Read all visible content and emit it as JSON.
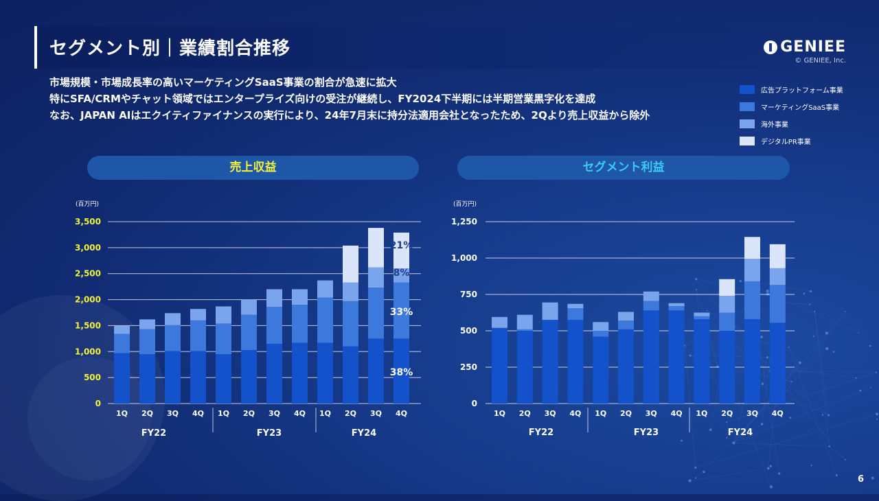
{
  "header": {
    "title": "セグメント別｜業績割合推移",
    "logo_text": "GENIEE",
    "copyright": "© GENIEE, Inc."
  },
  "description": [
    "市場規模・市場成長率の高いマーケティングSaaS事業の割合が急速に拡大",
    "特にSFA/CRMやチャット領域ではエンタープライズ向けの受注が継続し、FY2024下半期には半期営業黒字化を達成",
    "なお、JAPAN AIはエクイティファイナンスの実行により、24年7月末に持分法適用会社となったため、2Qより売上収益から除外"
  ],
  "page_number": "6",
  "colors": {
    "advertising": "#1452cc",
    "marketing_saas": "#3d78dc",
    "overseas": "#7aa4ec",
    "digital_pr": "#dbe5fa",
    "axis_label_left": "#f2f23c",
    "panel_title_left": "#f2f23c",
    "panel_title_right": "#3ecbf5"
  },
  "legend": [
    {
      "label": "広告プラットフォーム事業",
      "color": "#1452cc"
    },
    {
      "label": "マーケティングSaaS事業",
      "color": "#3d78dc"
    },
    {
      "label": "海外事業",
      "color": "#7aa4ec"
    },
    {
      "label": "デジタルPR事業",
      "color": "#dbe5fa"
    }
  ],
  "chart_data": [
    {
      "type": "bar",
      "stacked": true,
      "title": "売上収益",
      "unit": "(百万円)",
      "categories": [
        "1Q",
        "2Q",
        "3Q",
        "4Q",
        "1Q",
        "2Q",
        "3Q",
        "4Q",
        "1Q",
        "2Q",
        "3Q",
        "4Q"
      ],
      "groups": [
        {
          "label": "FY22",
          "span": 4
        },
        {
          "label": "FY23",
          "span": 4
        },
        {
          "label": "FY24",
          "span": 4
        }
      ],
      "ylim": [
        0,
        3500
      ],
      "yticks": [
        "0",
        "500",
        "1,000",
        "1,500",
        "2,000",
        "2,500",
        "3,000",
        "3,500"
      ],
      "series": [
        {
          "name": "広告プラットフォーム事業",
          "values": [
            970,
            950,
            1010,
            1010,
            950,
            1030,
            1150,
            1170,
            1170,
            1100,
            1250,
            1250
          ]
        },
        {
          "name": "マーケティングSaaS事業",
          "values": [
            370,
            480,
            500,
            590,
            590,
            680,
            710,
            730,
            870,
            870,
            980,
            1080
          ]
        },
        {
          "name": "海外事業",
          "values": [
            160,
            190,
            230,
            220,
            330,
            290,
            340,
            300,
            330,
            360,
            390,
            270
          ]
        },
        {
          "name": "デジタルPR事業",
          "values": [
            0,
            0,
            0,
            0,
            0,
            0,
            0,
            0,
            0,
            710,
            760,
            690
          ]
        }
      ],
      "annotations": [
        "21%",
        "8%",
        "33%",
        "38%"
      ]
    },
    {
      "type": "bar",
      "stacked": true,
      "title": "セグメント利益",
      "unit": "(百万円)",
      "categories": [
        "1Q",
        "2Q",
        "3Q",
        "4Q",
        "1Q",
        "2Q",
        "3Q",
        "4Q",
        "1Q",
        "2Q",
        "3Q",
        "4Q"
      ],
      "groups": [
        {
          "label": "FY22",
          "span": 4
        },
        {
          "label": "FY23",
          "span": 4
        },
        {
          "label": "FY24",
          "span": 4
        }
      ],
      "ylim": [
        0,
        1250
      ],
      "yticks": [
        "0",
        "250",
        "500",
        "750",
        "1,000",
        "1,250"
      ],
      "series": [
        {
          "name": "広告プラットフォーム事業",
          "values": [
            520,
            500,
            575,
            575,
            460,
            510,
            640,
            640,
            580,
            500,
            580,
            555
          ]
        },
        {
          "name": "マーケティングSaaS事業",
          "values": [
            0,
            10,
            0,
            80,
            40,
            60,
            65,
            30,
            20,
            125,
            260,
            260
          ]
        },
        {
          "name": "海外事業",
          "values": [
            75,
            100,
            120,
            30,
            60,
            60,
            65,
            20,
            25,
            115,
            155,
            115
          ]
        },
        {
          "name": "デジタルPR事業",
          "values": [
            0,
            0,
            0,
            0,
            0,
            0,
            0,
            0,
            0,
            115,
            150,
            165
          ]
        }
      ]
    }
  ]
}
